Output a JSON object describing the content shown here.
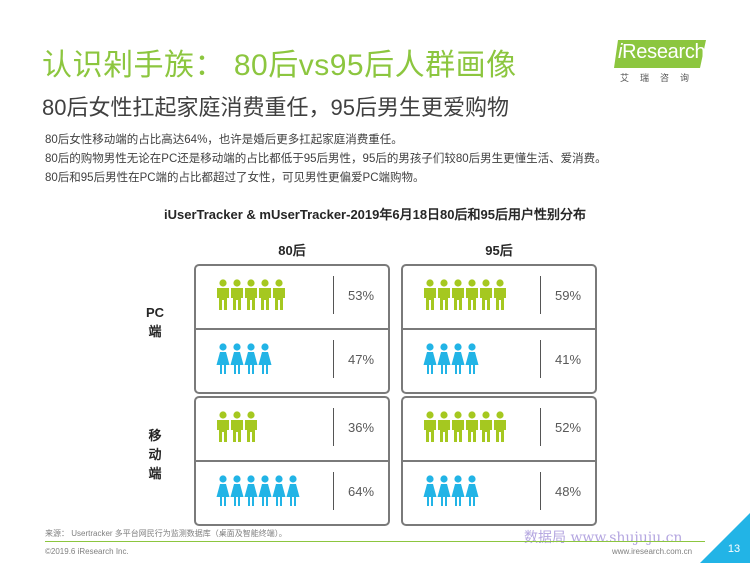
{
  "header": {
    "title": "认识剁手族： 80后vs95后人群画像",
    "subtitle": "80后女性扛起家庭消费重任，95后男生更爱购物"
  },
  "logo": {
    "prefix": "i",
    "name": "Research",
    "sub": "艾瑞咨询"
  },
  "description": [
    "80后女性移动端的占比高达64%，也许是婚后更多扛起家庭消费重任。",
    "80后的购物男性无论在PC还是移动端的占比都低于95后男性，95后的男孩子们较80后男生更懂生活、爱消费。",
    "80后和95后男性在PC端的占比都超过了女性，可见男性更偏爱PC端购物。"
  ],
  "chart_title": "iUserTracker & mUserTracker-2019年6月18日80后和95后用户性别分布",
  "columns": [
    "80后",
    "95后"
  ],
  "rows": [
    {
      "label_lines": [
        "PC",
        "端"
      ]
    },
    {
      "label_lines": [
        "移",
        "动",
        "端"
      ]
    }
  ],
  "colors": {
    "male": "#a5c820",
    "female": "#22b4e6",
    "accent_green": "#8cc63f",
    "panel_border": "#7a7a7a",
    "corner_triangle": "#22b4e6"
  },
  "cells": {
    "pc_80": {
      "male_pct": "53%",
      "female_pct": "47%",
      "male_icons": 5,
      "female_icons": 4
    },
    "pc_95": {
      "male_pct": "59%",
      "female_pct": "41%",
      "male_icons": 6,
      "female_icons": 4
    },
    "mob_80": {
      "male_pct": "36%",
      "female_pct": "64%",
      "male_icons": 3,
      "female_icons": 6
    },
    "mob_95": {
      "male_pct": "52%",
      "female_pct": "48%",
      "male_icons": 6,
      "female_icons": 4
    }
  },
  "icon_names": {
    "male": "male-person-icon",
    "female": "female-person-icon"
  },
  "footer": {
    "source": "来源：  Usertracker 多平台网民行为监测数据库（桌面及智能终端）。",
    "copyright": "©2019.6 iResearch Inc.",
    "website": "www.iresearch.com.cn",
    "page": "13",
    "watermark": "数据局  www.shujuju.cn"
  }
}
